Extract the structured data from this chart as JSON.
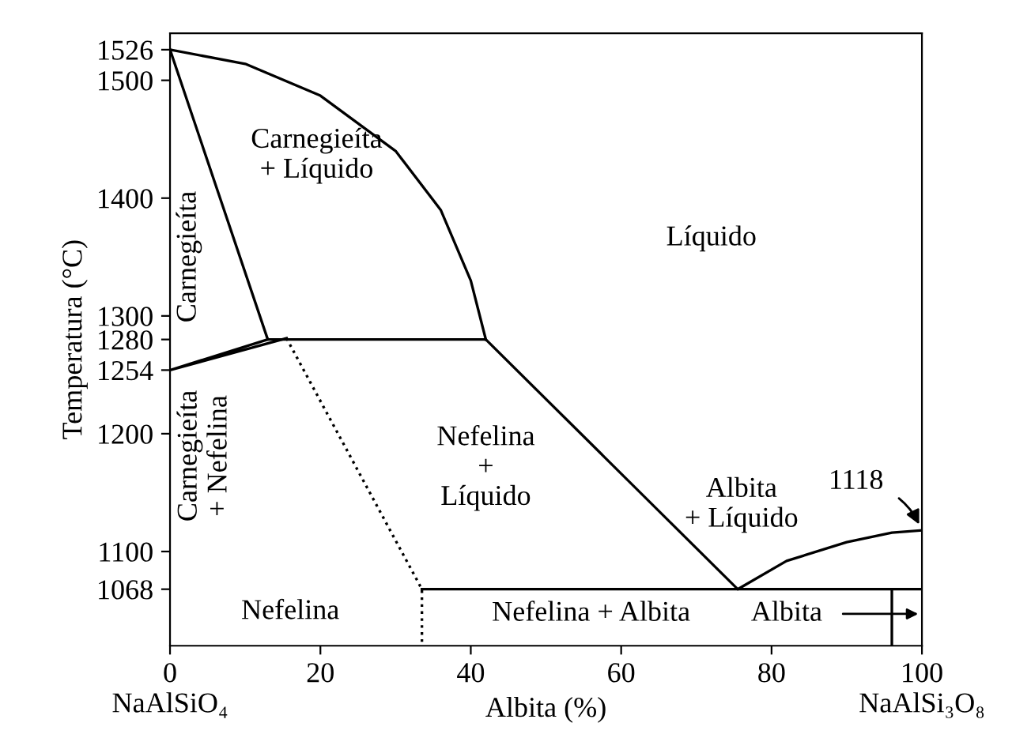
{
  "chart_data": {
    "type": "line",
    "xlabel": "Albita (%)",
    "ylabel": "Temperatura (°C)",
    "xlim": [
      0,
      100
    ],
    "ylim": [
      1020,
      1540
    ],
    "xticks": [
      0,
      20,
      40,
      60,
      80,
      100
    ],
    "yticks": [
      1068,
      1100,
      1200,
      1254,
      1280,
      1300,
      1400,
      1500,
      1526
    ],
    "series": [
      {
        "color": "#000000",
        "line_style": "solid",
        "x": [
          0,
          10,
          20,
          30,
          36,
          40,
          42
        ],
        "values": [
          1526,
          1514,
          1487,
          1440,
          1390,
          1330,
          1280
        ]
      },
      {
        "color": "#000000",
        "line_style": "solid",
        "x": [
          0,
          13,
          42,
          75.5,
          82,
          90,
          96,
          100
        ],
        "values": [
          1526,
          1280,
          1280,
          1068,
          1092,
          1108,
          1116,
          1118
        ]
      },
      {
        "color": "#000000",
        "line_style": "solid",
        "x": [
          13,
          0,
          15.5
        ],
        "values": [
          1280,
          1254,
          1281
        ]
      },
      {
        "color": "#000000",
        "line_style": "dotted",
        "x": [
          15.5,
          33.5,
          33.5
        ],
        "values": [
          1281,
          1068,
          1020
        ]
      },
      {
        "color": "#000000",
        "line_style": "solid",
        "x": [
          33.5,
          100
        ],
        "values": [
          1068,
          1068
        ]
      },
      {
        "color": "#000000",
        "line_style": "solid",
        "x": [
          96,
          96
        ],
        "values": [
          1068,
          1020
        ]
      }
    ],
    "annotations": [
      "Carnegieíta\n+ Líquido",
      "Líquido",
      "Carnegieíta",
      "Carnegieíta\n+ Nefelina",
      "Nefelina\n+\nLíquido",
      "Albita\n+ Líquido",
      {
        "text": "1118",
        "x": 100,
        "y": 1118
      },
      "Nefelina",
      "Nefelina + Albita",
      "Albita",
      "NaAlSiO₄",
      "NaAlSi₃O₈"
    ]
  }
}
